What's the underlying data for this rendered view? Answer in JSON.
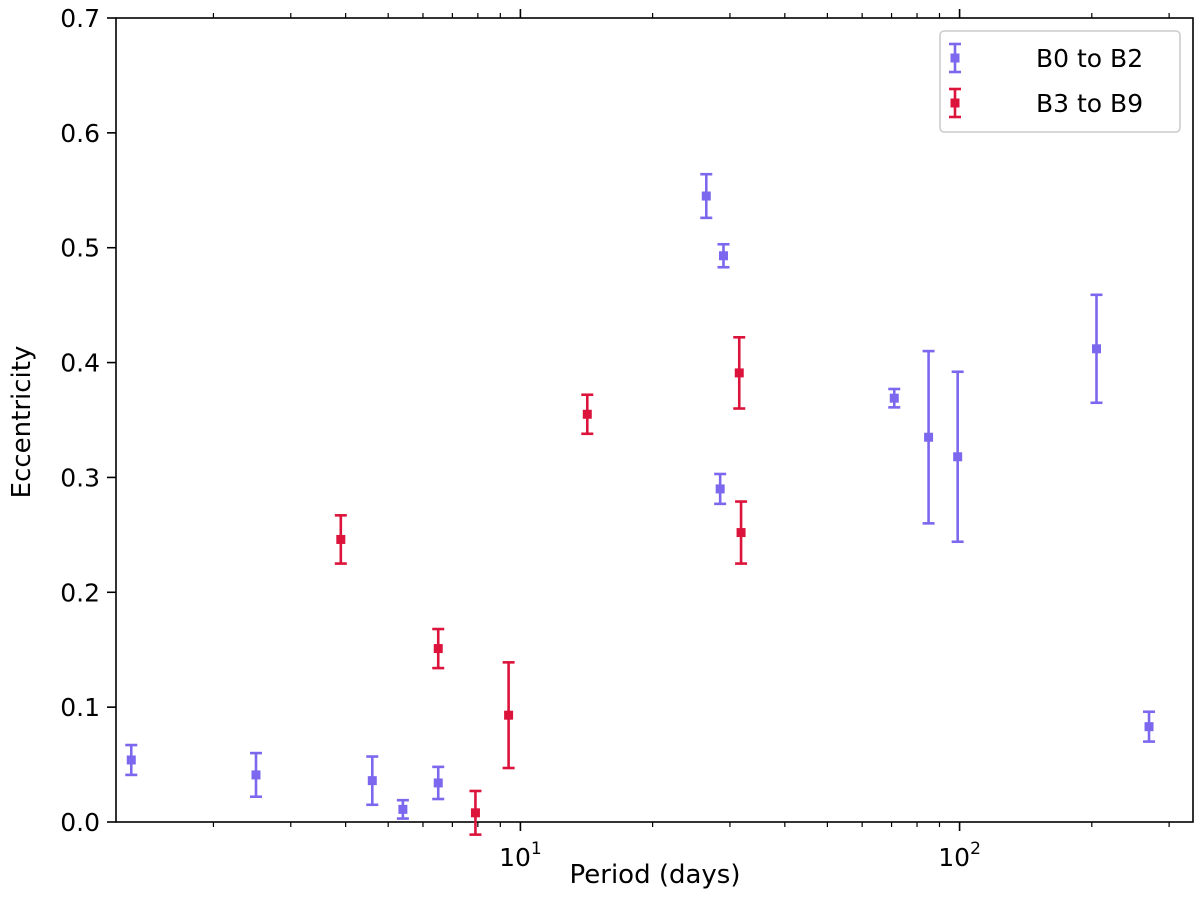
{
  "chart_data": {
    "type": "scatter",
    "xlabel": "Period (days)",
    "ylabel": "Eccentricity",
    "xscale": "log",
    "xlim": [
      1.2,
      340
    ],
    "ylim": [
      0.0,
      0.7
    ],
    "x_tick_values": [
      10,
      100
    ],
    "x_tick_labels": [
      {
        "base": "10",
        "exp": "1"
      },
      {
        "base": "10",
        "exp": "2"
      }
    ],
    "y_ticks": [
      0.0,
      0.1,
      0.2,
      0.3,
      0.4,
      0.5,
      0.6,
      0.7
    ],
    "y_tick_labels": [
      "0.0",
      "0.1",
      "0.2",
      "0.3",
      "0.4",
      "0.5",
      "0.6",
      "0.7"
    ],
    "grid": false,
    "legend_position": "top-right",
    "series": [
      {
        "name": "B0 to B2",
        "color": "#7b68ee",
        "points": [
          {
            "x": 1.3,
            "y": 0.054,
            "err": 0.013
          },
          {
            "x": 2.5,
            "y": 0.041,
            "err": 0.019
          },
          {
            "x": 4.6,
            "y": 0.036,
            "err": 0.021
          },
          {
            "x": 5.4,
            "y": 0.011,
            "err": 0.008
          },
          {
            "x": 6.5,
            "y": 0.034,
            "err": 0.014
          },
          {
            "x": 26.5,
            "y": 0.545,
            "err": 0.019
          },
          {
            "x": 28.5,
            "y": 0.29,
            "err": 0.013
          },
          {
            "x": 29.0,
            "y": 0.493,
            "err": 0.01
          },
          {
            "x": 71,
            "y": 0.369,
            "err": 0.008
          },
          {
            "x": 85,
            "y": 0.335,
            "err": 0.075
          },
          {
            "x": 99,
            "y": 0.318,
            "err": 0.074
          },
          {
            "x": 205,
            "y": 0.412,
            "err": 0.047
          },
          {
            "x": 270,
            "y": 0.083,
            "err": 0.013
          }
        ]
      },
      {
        "name": "B3 to B9",
        "color": "#dc143c",
        "points": [
          {
            "x": 3.9,
            "y": 0.246,
            "err": 0.021
          },
          {
            "x": 6.5,
            "y": 0.151,
            "err": 0.017
          },
          {
            "x": 7.9,
            "y": 0.008,
            "err": 0.019
          },
          {
            "x": 9.4,
            "y": 0.093,
            "err": 0.046
          },
          {
            "x": 14.2,
            "y": 0.355,
            "err": 0.017
          },
          {
            "x": 31.5,
            "y": 0.391,
            "err": 0.031
          },
          {
            "x": 31.8,
            "y": 0.252,
            "err": 0.027
          }
        ]
      }
    ]
  }
}
